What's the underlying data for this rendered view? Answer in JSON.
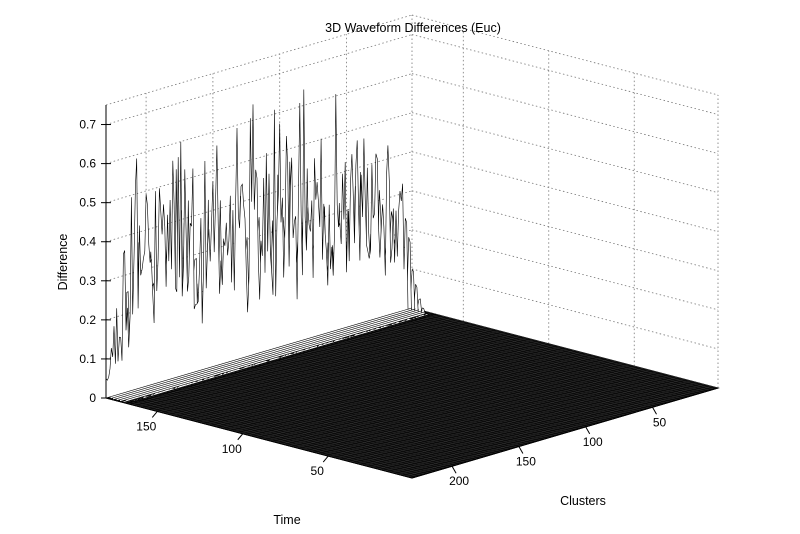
{
  "chart_data": {
    "type": "surface",
    "title": "3D Waveform Differences (Euc)",
    "xlabel": "Clusters",
    "ylabel": "Time",
    "zlabel": "Difference",
    "x_range": [
      1,
      230
    ],
    "y_range": [
      1,
      180
    ],
    "z_range": [
      0,
      0.75
    ],
    "x_ticks": [
      50,
      100,
      150,
      200
    ],
    "y_ticks": [
      50,
      100,
      150
    ],
    "z_ticks": [
      0,
      0.1,
      0.2,
      0.3,
      0.4,
      0.5,
      0.6,
      0.7
    ],
    "grid": true,
    "colors": {
      "mesh": "#000000",
      "grid": "#777777",
      "background": "#ffffff"
    },
    "peak_profile": {
      "description_points": [
        {
          "x": 5,
          "y": 180,
          "z": 0.35
        },
        {
          "x": 50,
          "y": 180,
          "z": 0.6
        },
        {
          "x": 100,
          "y": 180,
          "z": 0.58
        },
        {
          "x": 150,
          "y": 180,
          "z": 0.62
        },
        {
          "x": 200,
          "y": 180,
          "z": 0.72
        },
        {
          "x": 230,
          "y": 180,
          "z": 0.05
        }
      ]
    }
  }
}
